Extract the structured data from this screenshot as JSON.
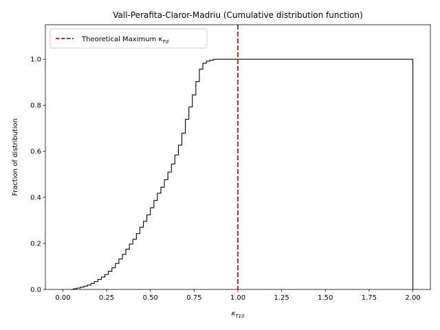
{
  "chart_data": {
    "type": "line",
    "title": "Vall-Perafita-Claror-Madriu (Cumulative distribution function)",
    "xlabel_main": "κ",
    "xlabel_sub": "T10",
    "ylabel": "Fraction of distribution",
    "xlim": [
      -0.1,
      2.1
    ],
    "ylim": [
      0,
      1.15
    ],
    "xticks": [
      "0.00",
      "0.25",
      "0.50",
      "0.75",
      "1.00",
      "1.25",
      "1.50",
      "1.75",
      "2.00"
    ],
    "yticks": [
      "0.0",
      "0.2",
      "0.4",
      "0.6",
      "0.8",
      "1.0"
    ],
    "grid": false,
    "legend": {
      "placement": "upper-left",
      "entry_main": "Theoretical Maximum κ",
      "entry_sub": "Td",
      "line_style": "dashed",
      "color": "#d62728"
    },
    "vline": {
      "x": 1.0,
      "color": "#d62728"
    },
    "series": [
      {
        "style": "step",
        "color": "#000000",
        "x": [
          0.04,
          0.06,
          0.08,
          0.1,
          0.12,
          0.14,
          0.16,
          0.18,
          0.2,
          0.22,
          0.24,
          0.26,
          0.28,
          0.3,
          0.32,
          0.34,
          0.36,
          0.38,
          0.4,
          0.42,
          0.44,
          0.46,
          0.48,
          0.5,
          0.52,
          0.54,
          0.56,
          0.58,
          0.6,
          0.62,
          0.64,
          0.66,
          0.68,
          0.7,
          0.72,
          0.74,
          0.76,
          0.78,
          0.8,
          0.82,
          0.84,
          0.86,
          0.88,
          2.0
        ],
        "y": [
          0.0,
          0.003,
          0.006,
          0.01,
          0.014,
          0.019,
          0.026,
          0.034,
          0.043,
          0.054,
          0.065,
          0.079,
          0.094,
          0.113,
          0.132,
          0.152,
          0.175,
          0.197,
          0.218,
          0.243,
          0.27,
          0.296,
          0.324,
          0.355,
          0.387,
          0.418,
          0.444,
          0.477,
          0.51,
          0.545,
          0.584,
          0.627,
          0.679,
          0.739,
          0.793,
          0.845,
          0.903,
          0.957,
          0.983,
          0.992,
          0.996,
          1.0,
          1.0,
          1.0
        ]
      }
    ]
  }
}
